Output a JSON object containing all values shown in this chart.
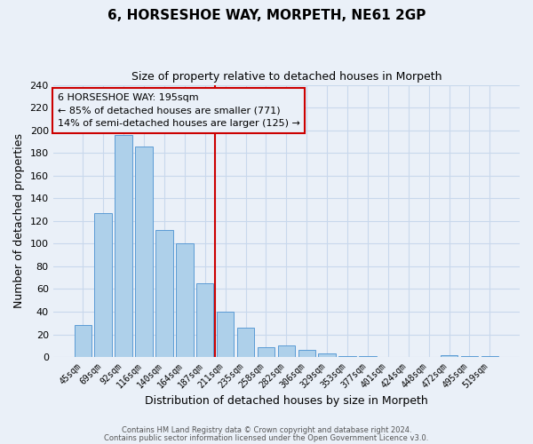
{
  "title": "6, HORSESHOE WAY, MORPETH, NE61 2GP",
  "subtitle": "Size of property relative to detached houses in Morpeth",
  "xlabel": "Distribution of detached houses by size in Morpeth",
  "ylabel": "Number of detached properties",
  "bar_labels": [
    "45sqm",
    "69sqm",
    "92sqm",
    "116sqm",
    "140sqm",
    "164sqm",
    "187sqm",
    "211sqm",
    "235sqm",
    "258sqm",
    "282sqm",
    "306sqm",
    "329sqm",
    "353sqm",
    "377sqm",
    "401sqm",
    "424sqm",
    "448sqm",
    "472sqm",
    "495sqm",
    "519sqm"
  ],
  "bar_values": [
    28,
    127,
    196,
    186,
    112,
    100,
    65,
    40,
    26,
    9,
    10,
    6,
    3,
    1,
    1,
    0,
    0,
    0,
    2,
    1,
    1
  ],
  "bar_color": "#aed0ea",
  "bar_edge_color": "#5b9bd5",
  "grid_color": "#c8d8ec",
  "background_color": "#eaf0f8",
  "vline_x_index": 6.5,
  "vline_color": "#cc0000",
  "annotation_text": "6 HORSESHOE WAY: 195sqm\n← 85% of detached houses are smaller (771)\n14% of semi-detached houses are larger (125) →",
  "annotation_box_edge": "#cc0000",
  "ylim": [
    0,
    240
  ],
  "yticks": [
    0,
    20,
    40,
    60,
    80,
    100,
    120,
    140,
    160,
    180,
    200,
    220,
    240
  ],
  "footer_line1": "Contains HM Land Registry data © Crown copyright and database right 2024.",
  "footer_line2": "Contains public sector information licensed under the Open Government Licence v3.0."
}
